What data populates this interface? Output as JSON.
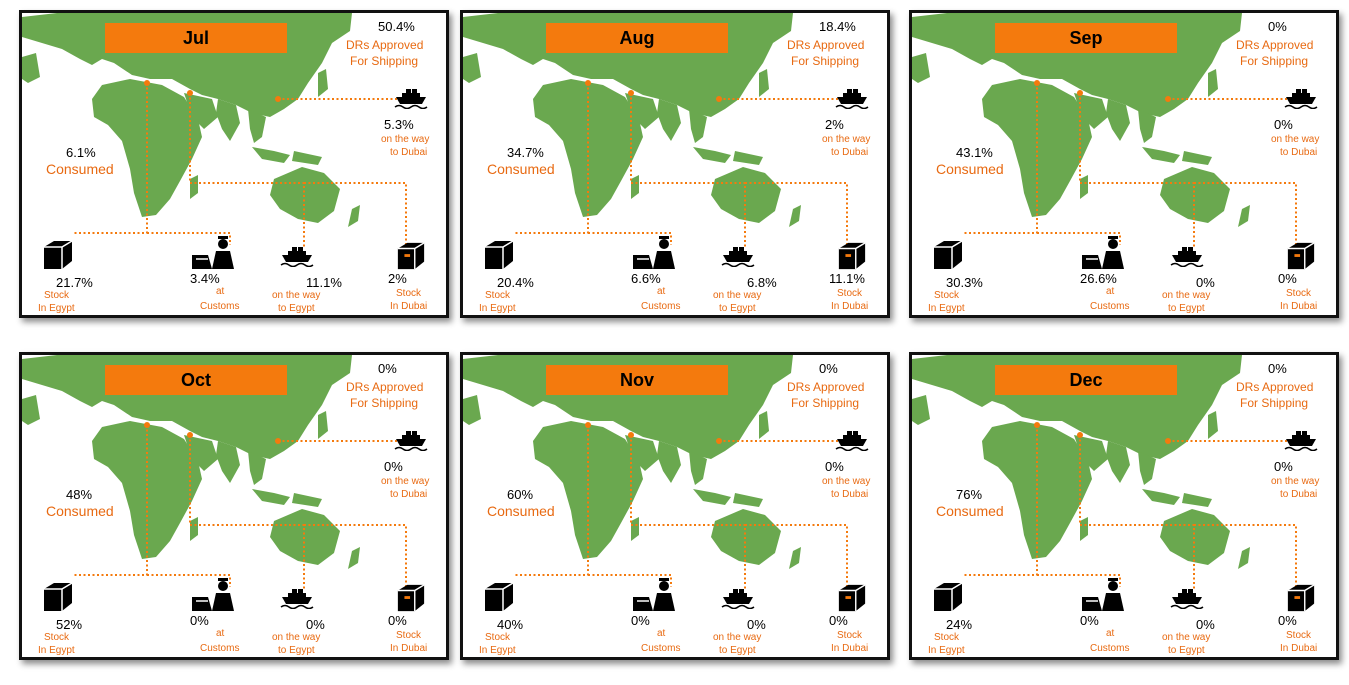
{
  "labels": {
    "approved": "DRs Approved",
    "for_shipping": "For Shipping",
    "on_way": "on the way",
    "to_dubai": "to Dubai",
    "to_egypt": "to Egypt",
    "consumed": "Consumed",
    "stock": "Stock",
    "in_egypt": "In Egypt",
    "in_dubai": "In Dubai",
    "at": "at",
    "customs": "Customs"
  },
  "colors": {
    "land": "#6aa84f",
    "accent": "#f47a0d",
    "label_text": "#e86a12",
    "border": "#111111"
  },
  "icons": [
    "ship-icon",
    "box-icon",
    "customs-officer-icon",
    "world-map"
  ],
  "panels": [
    {
      "month": "Jul",
      "approved": "50.4%",
      "on_way_dubai": "5.3%",
      "consumed": "6.1%",
      "stock_egypt": "21.7%",
      "customs": "3.4%",
      "on_way_egypt": "11.1%",
      "stock_dubai": "2%"
    },
    {
      "month": "Aug",
      "approved": "18.4%",
      "on_way_dubai": "2%",
      "consumed": "34.7%",
      "stock_egypt": "20.4%",
      "customs": "6.6%",
      "on_way_egypt": "6.8%",
      "stock_dubai": "11.1%"
    },
    {
      "month": "Sep",
      "approved": "0%",
      "on_way_dubai": "0%",
      "consumed": "43.1%",
      "stock_egypt": "30.3%",
      "customs": "26.6%",
      "on_way_egypt": "0%",
      "stock_dubai": "0%"
    },
    {
      "month": "Oct",
      "approved": "0%",
      "on_way_dubai": "0%",
      "consumed": "48%",
      "stock_egypt": "52%",
      "customs": "0%",
      "on_way_egypt": "0%",
      "stock_dubai": "0%"
    },
    {
      "month": "Nov",
      "approved": "0%",
      "on_way_dubai": "0%",
      "consumed": "60%",
      "stock_egypt": "40%",
      "customs": "0%",
      "on_way_egypt": "0%",
      "stock_dubai": "0%"
    },
    {
      "month": "Dec",
      "approved": "0%",
      "on_way_dubai": "0%",
      "consumed": "76%",
      "stock_egypt": "24%",
      "customs": "0%",
      "on_way_egypt": "0%",
      "stock_dubai": "0%"
    }
  ]
}
